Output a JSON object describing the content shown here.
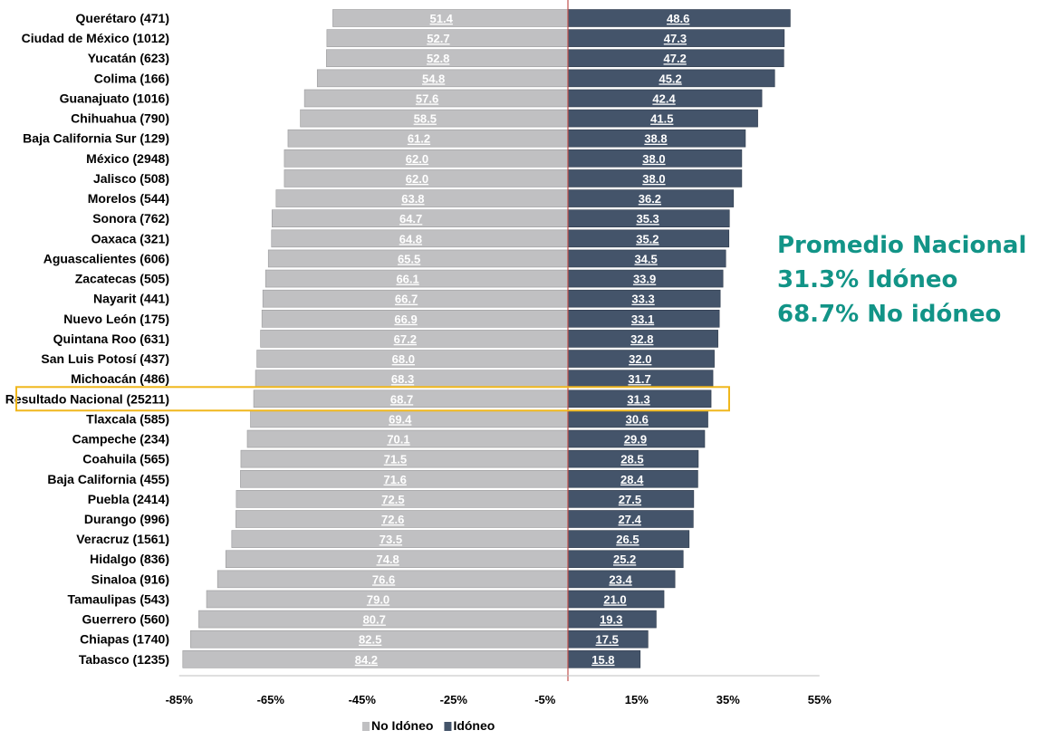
{
  "chart_data": {
    "type": "bar",
    "orientation": "horizontal-diverging",
    "categories": [
      "Querétaro (471)",
      "Ciudad de México (1012)",
      "Yucatán (623)",
      "Colima (166)",
      "Guanajuato (1016)",
      "Chihuahua (790)",
      "Baja California Sur (129)",
      "México (2948)",
      "Jalisco (508)",
      "Morelos (544)",
      "Sonora (762)",
      "Oaxaca (321)",
      "Aguascalientes (606)",
      "Zacatecas (505)",
      "Nayarit (441)",
      "Nuevo León (175)",
      "Quintana Roo (631)",
      "San Luis Potosí (437)",
      "Michoacán (486)",
      "Resultado Nacional (25211)",
      "Tlaxcala (585)",
      "Campeche (234)",
      "Coahuila (565)",
      "Baja California (455)",
      "Puebla (2414)",
      "Durango (996)",
      "Veracruz (1561)",
      "Hidalgo (836)",
      "Sinaloa (916)",
      "Tamaulipas (543)",
      "Guerrero (560)",
      "Chiapas (1740)",
      "Tabasco (1235)"
    ],
    "series": [
      {
        "name": "No Idóneo",
        "color": "#c0c0c2",
        "direction": "negative",
        "values": [
          51.4,
          52.7,
          52.8,
          54.8,
          57.6,
          58.5,
          61.2,
          62.0,
          62.0,
          63.8,
          64.7,
          64.8,
          65.5,
          66.1,
          66.7,
          66.9,
          67.2,
          68.0,
          68.3,
          68.7,
          69.4,
          70.1,
          71.5,
          71.6,
          72.5,
          72.6,
          73.5,
          74.8,
          76.6,
          79.0,
          80.7,
          82.5,
          84.2
        ]
      },
      {
        "name": "Idóneo",
        "color": "#44546a",
        "direction": "positive",
        "values": [
          48.6,
          47.3,
          47.2,
          45.2,
          42.4,
          41.5,
          38.8,
          38.0,
          38.0,
          36.2,
          35.3,
          35.2,
          34.5,
          33.9,
          33.3,
          33.1,
          32.8,
          32.0,
          31.7,
          31.3,
          30.6,
          29.9,
          28.5,
          28.4,
          27.5,
          27.4,
          26.5,
          25.2,
          23.4,
          21.0,
          19.3,
          17.5,
          15.8
        ]
      }
    ],
    "xticks": [
      "-85%",
      "-65%",
      "-45%",
      "-25%",
      "-5%",
      "15%",
      "35%",
      "55%"
    ],
    "xlim": [
      -85,
      55
    ],
    "legend": "bottom",
    "highlight_category": "Resultado Nacional (25211)",
    "highlight_color": "#f0b71c",
    "annotation": [
      "Promedio Nacional",
      "31.3% Idóneo",
      "68.7% No idóneo"
    ],
    "annotation_color": "#129487"
  }
}
